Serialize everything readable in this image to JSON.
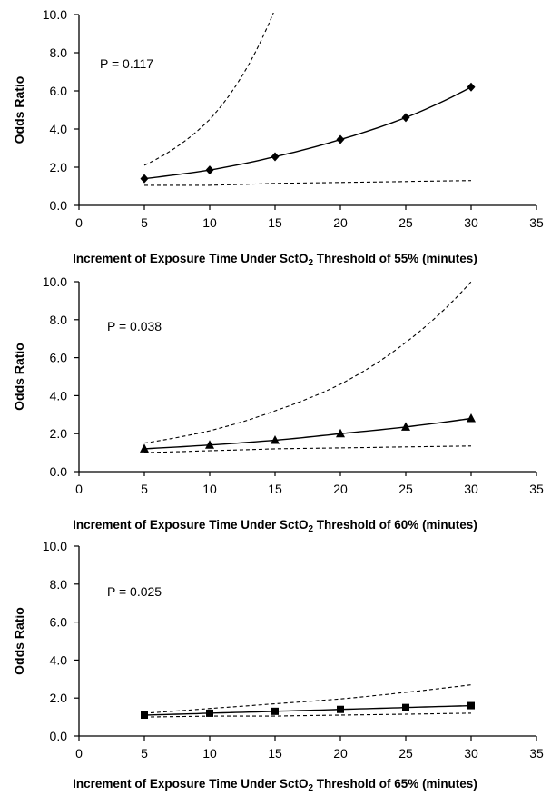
{
  "chart_data": [
    {
      "type": "line",
      "marker": "diamond",
      "annotation": "P = 0.117",
      "ylabel": "Odds Ratio",
      "xlabel_parts": [
        "Increment of Exposure Time Under SctO",
        "2",
        " Threshold of 55% (minutes)"
      ],
      "xlim": [
        0,
        35
      ],
      "ylim": [
        0,
        10
      ],
      "x_ticks": [
        "0",
        "5",
        "10",
        "15",
        "20",
        "25",
        "30",
        "35"
      ],
      "y_ticks": [
        "0.0",
        "2.0",
        "4.0",
        "6.0",
        "8.0",
        "10.0"
      ],
      "x": [
        5,
        10,
        15,
        20,
        25,
        30
      ],
      "series": [
        {
          "role": "estimate",
          "values": [
            1.4,
            1.85,
            2.55,
            3.45,
            4.6,
            6.2
          ]
        },
        {
          "role": "upper",
          "values": [
            2.1,
            4.5,
            10.3,
            null,
            null,
            null
          ]
        },
        {
          "role": "lower",
          "values": [
            1.05,
            1.05,
            1.15,
            1.2,
            1.25,
            1.3
          ]
        }
      ]
    },
    {
      "type": "line",
      "marker": "triangle",
      "annotation": "P = 0.038",
      "ylabel": "Odds Ratio",
      "xlabel_parts": [
        "Increment of Exposure Time Under SctO",
        "2",
        " Threshold of 60% (minutes)"
      ],
      "xlim": [
        0,
        35
      ],
      "ylim": [
        0,
        10
      ],
      "x_ticks": [
        "0",
        "5",
        "10",
        "15",
        "20",
        "25",
        "30",
        "35"
      ],
      "y_ticks": [
        "0.0",
        "2.0",
        "4.0",
        "6.0",
        "8.0",
        "10.0"
      ],
      "x": [
        5,
        10,
        15,
        20,
        25,
        30
      ],
      "series": [
        {
          "role": "estimate",
          "values": [
            1.2,
            1.4,
            1.65,
            2.0,
            2.35,
            2.8
          ]
        },
        {
          "role": "upper",
          "values": [
            1.5,
            2.15,
            3.2,
            4.6,
            6.8,
            10.0
          ]
        },
        {
          "role": "lower",
          "values": [
            1.0,
            1.1,
            1.2,
            1.25,
            1.3,
            1.35
          ]
        }
      ]
    },
    {
      "type": "line",
      "marker": "square",
      "annotation": "P = 0.025",
      "ylabel": "Odds Ratio",
      "xlabel_parts": [
        "Increment of Exposure Time Under SctO",
        "2",
        " Threshold of 65% (minutes)"
      ],
      "xlim": [
        0,
        35
      ],
      "ylim": [
        0,
        10
      ],
      "x_ticks": [
        "0",
        "5",
        "10",
        "15",
        "20",
        "25",
        "30",
        "35"
      ],
      "y_ticks": [
        "0.0",
        "2.0",
        "4.0",
        "6.0",
        "8.0",
        "10.0"
      ],
      "x": [
        5,
        10,
        15,
        20,
        25,
        30
      ],
      "series": [
        {
          "role": "estimate",
          "values": [
            1.1,
            1.2,
            1.3,
            1.4,
            1.5,
            1.6
          ]
        },
        {
          "role": "upper",
          "values": [
            1.2,
            1.45,
            1.7,
            1.95,
            2.3,
            2.7
          ]
        },
        {
          "role": "lower",
          "values": [
            1.0,
            1.05,
            1.05,
            1.1,
            1.15,
            1.2
          ]
        }
      ]
    }
  ]
}
